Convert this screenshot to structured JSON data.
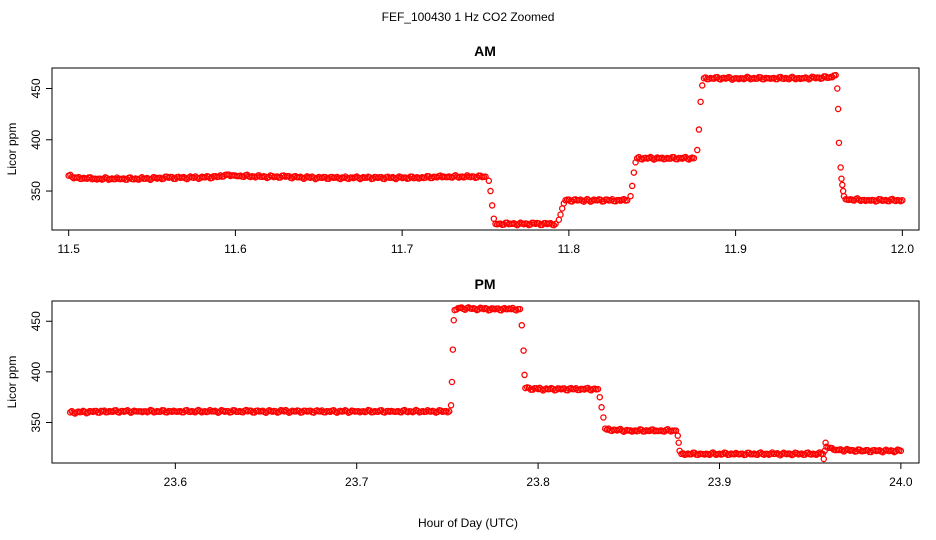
{
  "figure": {
    "title": "FEF_100430  1 Hz CO2 Zoomed",
    "xlabel": "Hour of Day (UTC)"
  },
  "colors": {
    "points": "#ff0000",
    "axis": "#000000",
    "background": "#ffffff"
  },
  "chart_data": [
    {
      "type": "scatter",
      "title": "AM",
      "ylabel": "Licor ppm",
      "xlim": [
        11.49,
        12.01
      ],
      "ylim": [
        312,
        470
      ],
      "xticks": [
        11.5,
        11.6,
        11.7,
        11.8,
        11.9,
        12.0
      ],
      "xtick_labels": [
        "11.5",
        "11.6",
        "11.7",
        "11.8",
        "11.9",
        "12.0"
      ],
      "yticks": [
        350,
        400,
        450
      ],
      "ytick_labels": [
        "350",
        "400",
        "450"
      ],
      "grid": false,
      "series": [
        {
          "marker": "open-circle",
          "points": [
            [
              11.5,
              365
            ],
            [
              11.505,
              363
            ],
            [
              11.515,
              362
            ],
            [
              11.53,
              362
            ],
            [
              11.545,
              362
            ],
            [
              11.56,
              363
            ],
            [
              11.575,
              363
            ],
            [
              11.59,
              364
            ],
            [
              11.595,
              366
            ],
            [
              11.6,
              365
            ],
            [
              11.615,
              364
            ],
            [
              11.63,
              364
            ],
            [
              11.645,
              363
            ],
            [
              11.665,
              363
            ],
            [
              11.708,
              363
            ],
            [
              11.725,
              364
            ],
            [
              11.74,
              364
            ],
            [
              11.75,
              364
            ],
            [
              11.752,
              360
            ],
            [
              11.753,
              350
            ],
            [
              11.754,
              336
            ],
            [
              11.755,
              323
            ],
            [
              11.756,
              318
            ],
            [
              11.765,
              318
            ],
            [
              11.78,
              318
            ],
            [
              11.792,
              318
            ],
            [
              11.794,
              322
            ],
            [
              11.795,
              327
            ],
            [
              11.796,
              333
            ],
            [
              11.797,
              338
            ],
            [
              11.798,
              341
            ],
            [
              11.81,
              341
            ],
            [
              11.825,
              341
            ],
            [
              11.835,
              341
            ],
            [
              11.837,
              345
            ],
            [
              11.838,
              355
            ],
            [
              11.839,
              368
            ],
            [
              11.84,
              378
            ],
            [
              11.841,
              382
            ],
            [
              11.855,
              382
            ],
            [
              11.875,
              382
            ],
            [
              11.877,
              390
            ],
            [
              11.878,
              410
            ],
            [
              11.879,
              437
            ],
            [
              11.88,
              453
            ],
            [
              11.881,
              460
            ],
            [
              11.9,
              460
            ],
            [
              11.92,
              460
            ],
            [
              11.94,
              460
            ],
            [
              11.958,
              461
            ],
            [
              11.96,
              463
            ],
            [
              11.961,
              450
            ],
            [
              11.9615,
              430
            ],
            [
              11.962,
              397
            ],
            [
              11.963,
              373
            ],
            [
              11.9635,
              362
            ],
            [
              11.964,
              356
            ],
            [
              11.9645,
              350
            ],
            [
              11.965,
              345
            ],
            [
              11.966,
              342
            ],
            [
              11.98,
              341
            ],
            [
              12.0,
              341
            ]
          ]
        }
      ]
    },
    {
      "type": "scatter",
      "title": "PM",
      "ylabel": "Licor ppm",
      "xlim": [
        23.532,
        24.01
      ],
      "ylim": [
        310,
        470
      ],
      "xticks": [
        23.6,
        23.7,
        23.8,
        23.9,
        24.0
      ],
      "xtick_labels": [
        "23.6",
        "23.7",
        "23.8",
        "23.9",
        "24.0"
      ],
      "yticks": [
        350,
        400,
        450
      ],
      "ytick_labels": [
        "350",
        "400",
        "450"
      ],
      "grid": false,
      "series": [
        {
          "marker": "open-circle",
          "points": [
            [
              23.542,
              360
            ],
            [
              23.56,
              361
            ],
            [
              23.58,
              361
            ],
            [
              23.6,
              361
            ],
            [
              23.62,
              361
            ],
            [
              23.64,
              361
            ],
            [
              23.66,
              361
            ],
            [
              23.68,
              361
            ],
            [
              23.7,
              361
            ],
            [
              23.72,
              361
            ],
            [
              23.74,
              361
            ],
            [
              23.751,
              361
            ],
            [
              23.752,
              367
            ],
            [
              23.7525,
              390
            ],
            [
              23.753,
              422
            ],
            [
              23.7535,
              451
            ],
            [
              23.754,
              461
            ],
            [
              23.756,
              463
            ],
            [
              23.77,
              462
            ],
            [
              23.785,
              462
            ],
            [
              23.79,
              462
            ],
            [
              23.791,
              446
            ],
            [
              23.792,
              421
            ],
            [
              23.7925,
              397
            ],
            [
              23.793,
              384
            ],
            [
              23.8,
              383
            ],
            [
              23.82,
              383
            ],
            [
              23.833,
              383
            ],
            [
              23.834,
              375
            ],
            [
              23.835,
              365
            ],
            [
              23.836,
              355
            ],
            [
              23.837,
              344
            ],
            [
              23.838,
              343
            ],
            [
              23.85,
              342
            ],
            [
              23.865,
              342
            ],
            [
              23.876,
              342
            ],
            [
              23.877,
              337
            ],
            [
              23.8775,
              330
            ],
            [
              23.878,
              322
            ],
            [
              23.879,
              319
            ],
            [
              23.89,
              319
            ],
            [
              23.91,
              319
            ],
            [
              23.93,
              319
            ],
            [
              23.957,
              319
            ],
            [
              23.9575,
              314
            ],
            [
              23.958,
              322
            ],
            [
              23.9585,
              330
            ],
            [
              23.959,
              326
            ],
            [
              23.965,
              323
            ],
            [
              23.98,
              322
            ],
            [
              24.0,
              322
            ]
          ]
        }
      ]
    }
  ]
}
